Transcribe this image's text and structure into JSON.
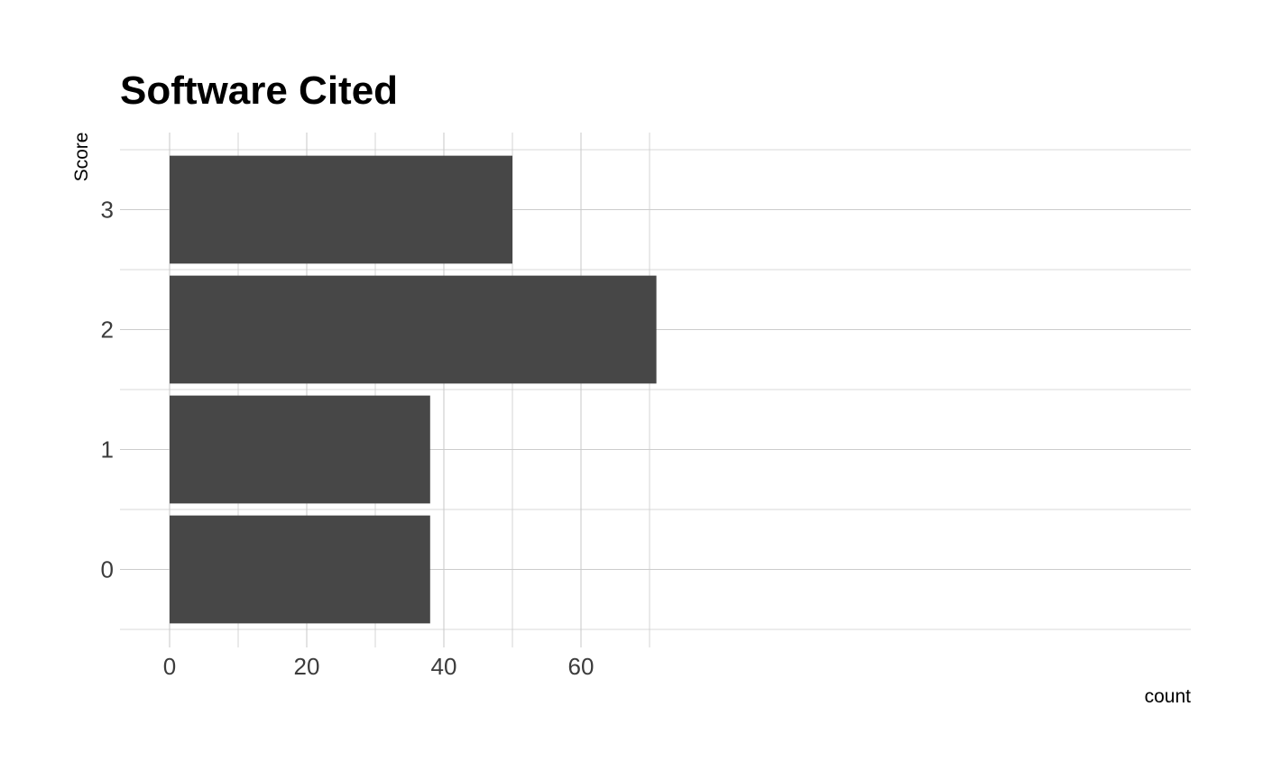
{
  "chart_data": {
    "type": "bar",
    "orientation": "horizontal",
    "title": "Software Cited",
    "xlabel": "count",
    "ylabel": "Score",
    "categories": [
      "0",
      "1",
      "2",
      "3"
    ],
    "values": [
      38,
      38,
      71,
      50
    ],
    "xlim": [
      0,
      74.7
    ],
    "xticks": [
      0,
      20,
      40,
      60
    ],
    "grid": true,
    "legend": "none",
    "colors": {
      "bar": "#474747",
      "grid": "#cccccc",
      "background": "#ffffff",
      "tick_text": "#3c3c3c",
      "title_text": "#000000"
    }
  }
}
